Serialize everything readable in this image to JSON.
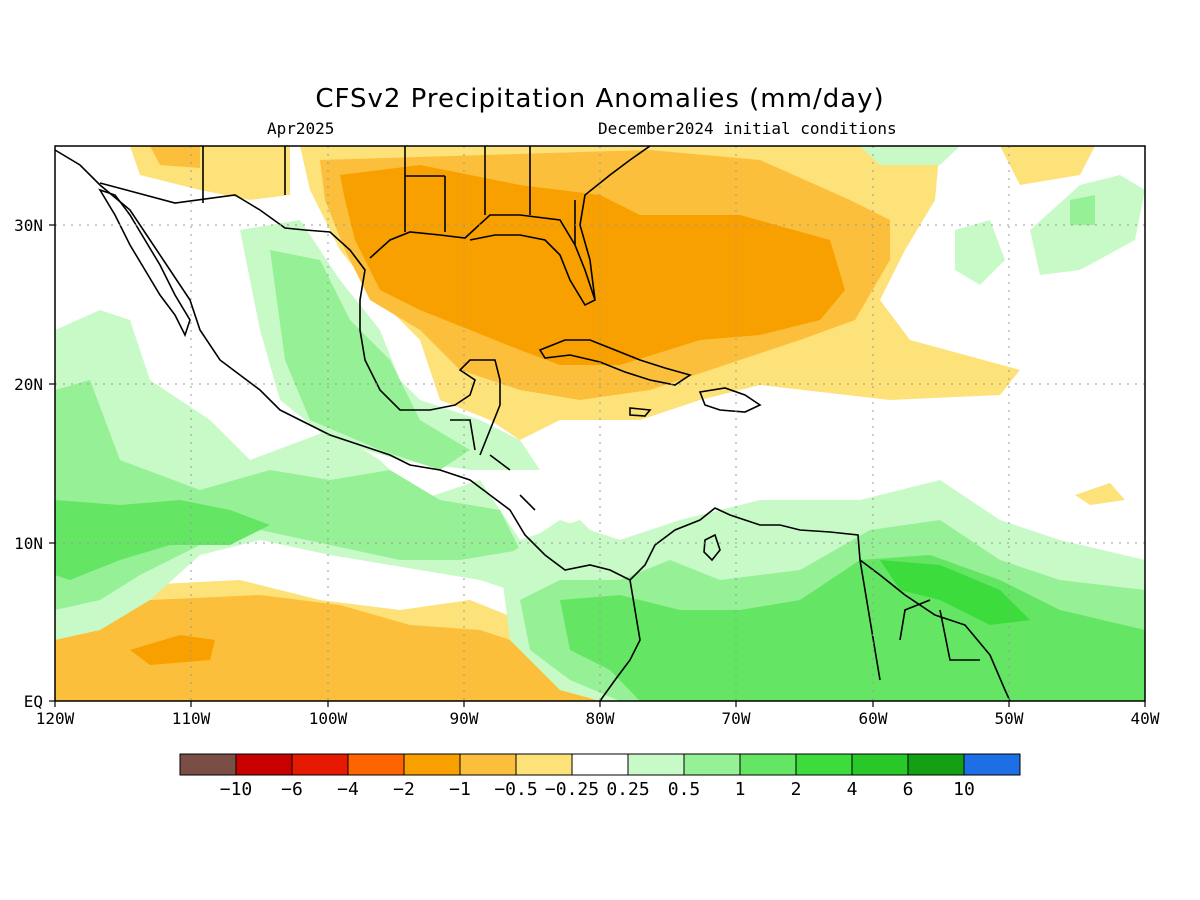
{
  "title": "CFSv2 Precipitation Anomalies (mm/day)",
  "valid_month": "Apr2025",
  "initial_conditions": "December2024 initial conditions",
  "map": {
    "lon_range": [
      -120,
      -40
    ],
    "lat_range": [
      0,
      35
    ],
    "x_ticks": [
      "120W",
      "110W",
      "100W",
      "90W",
      "80W",
      "70W",
      "60W",
      "50W",
      "40W"
    ],
    "y_ticks": [
      "EQ",
      "10N",
      "20N",
      "30N"
    ],
    "grid": true,
    "colors": {
      "wet_light": "#c8fac8",
      "wet_1": "#96f096",
      "wet_2": "#64e664",
      "wet_4": "#3cdc3c",
      "dry_light": "#fde27a",
      "dry_1": "#fbbf3c",
      "dry_2": "#f7a000",
      "coast": "#000000"
    }
  },
  "colorbar": {
    "colors": [
      "#7a4e44",
      "#c80000",
      "#e61a00",
      "#ff6400",
      "#f7a000",
      "#fbbf3c",
      "#fde27a",
      "#ffffff",
      "#c8fac8",
      "#96f096",
      "#64e664",
      "#3cdc3c",
      "#28c828",
      "#14a014",
      "#1e6ee6"
    ],
    "labels": [
      "−10",
      "−6",
      "−4",
      "−2",
      "−1",
      "−0.5",
      "−0.25",
      "0.25",
      "0.5",
      "1",
      "2",
      "4",
      "6",
      "10"
    ]
  }
}
